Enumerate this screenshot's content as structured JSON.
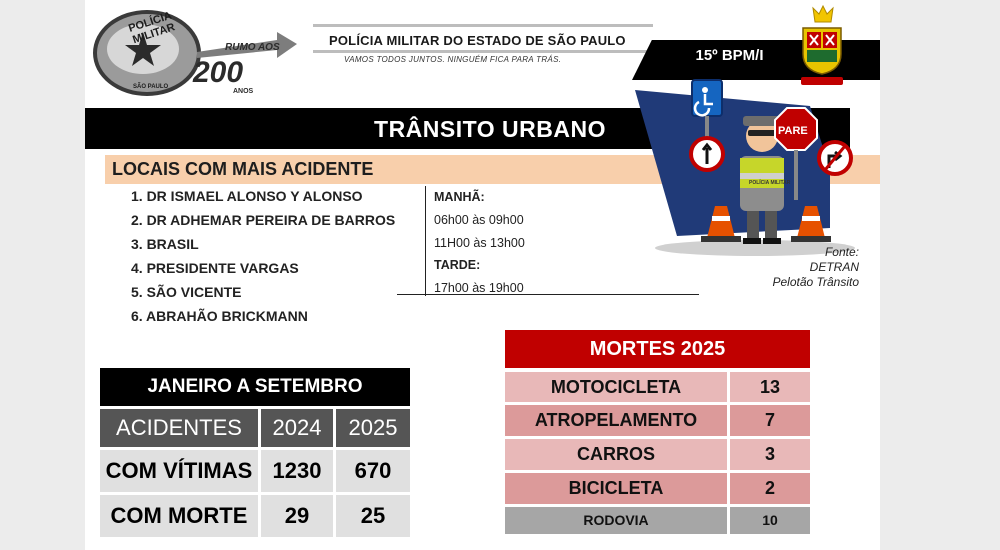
{
  "header": {
    "emblem": {
      "text_top": "POLÍCIA MILITAR",
      "text_bottom": "SÃO PAULO",
      "anniversary_top": "RUMO AOS",
      "anniversary_number": "200",
      "anniversary_bottom": "ANOS"
    },
    "title": "POLÍCIA MILITAR DO ESTADO DE SÃO PAULO",
    "slogan": "VAMOS TODOS JUNTOS. NINGUÉM FICA PARA TRÁS.",
    "unit": "15º BPM/I",
    "crest_caption": "15º BPM/I"
  },
  "main_title": "TRÂNSITO URBANO",
  "locais": {
    "heading": "LOCAIS COM MAIS ACIDENTE",
    "items": [
      "1. DR ISMAEL ALONSO Y ALONSO",
      "2. DR ADHEMAR PEREIRA DE BARROS",
      "3. BRASIL",
      "4. PRESIDENTE VARGAS",
      "5. SÃO VICENTE",
      "6. ABRAHÃO BRICKMANN"
    ]
  },
  "horarios": {
    "manha_label": "MANHÃ:",
    "manha_1": "06h00 às 09h00",
    "manha_2": "11H00 às 13h00",
    "tarde_label": "TARDE:",
    "tarde_1": "17h00 às 19h00"
  },
  "illustration": {
    "sign_pare": "PARE",
    "vest_text": "POLÍCIA MILITAR"
  },
  "fonte": {
    "line1": "Fonte:",
    "line2": "DETRAN",
    "line3": "Pelotão Trânsito"
  },
  "acidentes_table": {
    "title": "JANEIRO A SETEMBRO",
    "header": [
      "ACIDENTES",
      "2024",
      "2025"
    ],
    "rows": [
      [
        "COM VÍTIMAS",
        "1230",
        "670"
      ],
      [
        "COM MORTE",
        "29",
        "25"
      ]
    ]
  },
  "mortes_table": {
    "title": "MORTES 2025",
    "rows": [
      [
        "MOTOCICLETA",
        "13"
      ],
      [
        "ATROPELAMENTO",
        "7"
      ],
      [
        "CARROS",
        "3"
      ],
      [
        "BICICLETA",
        "2"
      ],
      [
        "RODOVIA",
        "10"
      ]
    ]
  },
  "colors": {
    "title_bar": "#000000",
    "locais_bar": "#f8cfab",
    "mortes_header": "#c00000",
    "mortes_row_light": "#e8b8b8",
    "mortes_row_dark": "#dc9a9a",
    "rodovia_row": "#a6a6a6",
    "acidentes_header_row": "#555555",
    "acidentes_body_row": "#e0e0e0"
  }
}
